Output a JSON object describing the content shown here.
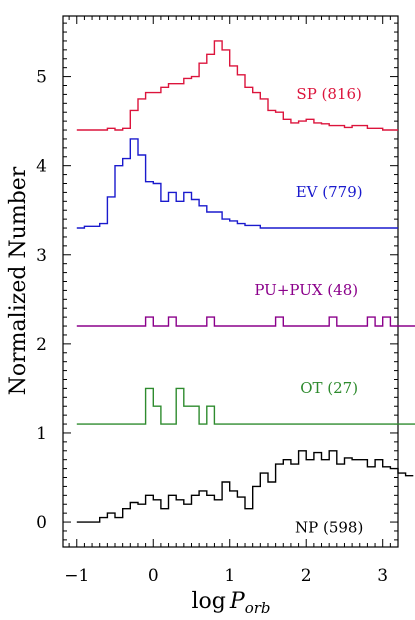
{
  "chart_data": {
    "type": "line",
    "step": true,
    "title": "",
    "xlabel_prefix": "log",
    "xlabel_var": "P",
    "xlabel_sub": "orb",
    "ylabel": "Normalized Number",
    "xlim": [
      -1.18,
      3.2
    ],
    "ylim": [
      -0.28,
      5.68
    ],
    "xticks": [
      -1,
      0,
      1,
      2,
      3
    ],
    "xtick_labels": [
      "−1",
      "0",
      "1",
      "2",
      "3"
    ],
    "yticks": [
      0,
      1,
      2,
      3,
      4,
      5
    ],
    "ytick_labels": [
      "0",
      "1",
      "2",
      "3",
      "4",
      "5"
    ],
    "bin_width": 0.1,
    "series": [
      {
        "name": "SP (816)",
        "color": "#dc143c",
        "edges": [
          -1.0,
          1.9
        ],
        "values": [
          4.4,
          4.4,
          4.4,
          4.4,
          4.42,
          4.4,
          4.42,
          4.62,
          4.75,
          4.82,
          4.82,
          4.88,
          4.92,
          4.92,
          4.98,
          5.0,
          5.15,
          5.25,
          5.4,
          5.3,
          5.12,
          5.02,
          4.88,
          4.82,
          4.75,
          4.62,
          4.6,
          4.52,
          4.48,
          4.5,
          4.52,
          4.48,
          4.47,
          4.45,
          4.45,
          4.43,
          4.45,
          4.45,
          4.42,
          4.42,
          4.4,
          4.4
        ]
      },
      {
        "name": "EV (779)",
        "color": "#1a1acd",
        "edges": [
          -1.0,
          1.9
        ],
        "values": [
          3.3,
          3.32,
          3.32,
          3.35,
          3.65,
          4.0,
          4.08,
          4.3,
          4.12,
          3.82,
          3.8,
          3.6,
          3.7,
          3.6,
          3.7,
          3.62,
          3.55,
          3.48,
          3.48,
          3.4,
          3.38,
          3.35,
          3.33,
          3.33,
          3.3,
          3.3,
          3.3,
          3.3,
          3.3,
          3.3,
          3.3,
          3.3,
          3.3,
          3.3,
          3.3,
          3.3,
          3.3,
          3.3,
          3.3,
          3.3,
          3.3,
          3.3
        ]
      },
      {
        "name": "PU+PUX (48)",
        "color": "#8b008b",
        "edges": [
          -1.0,
          2.5
        ],
        "values": [
          2.2,
          2.2,
          2.2,
          2.2,
          2.2,
          2.2,
          2.2,
          2.2,
          2.2,
          2.3,
          2.2,
          2.2,
          2.3,
          2.2,
          2.2,
          2.2,
          2.2,
          2.3,
          2.2,
          2.2,
          2.2,
          2.2,
          2.2,
          2.2,
          2.2,
          2.2,
          2.3,
          2.2,
          2.2,
          2.2,
          2.2,
          2.2,
          2.2,
          2.3,
          2.2,
          2.2,
          2.2,
          2.2,
          2.3,
          2.2,
          2.3,
          2.2,
          2.2,
          2.2,
          2.2,
          2.2,
          2.2,
          2.2,
          2.2,
          2.2
        ]
      },
      {
        "name": "OT (27)",
        "color": "#2e8b2e",
        "edges": [
          -1.0,
          2.5
        ],
        "values": [
          1.1,
          1.1,
          1.1,
          1.1,
          1.1,
          1.1,
          1.1,
          1.1,
          1.1,
          1.5,
          1.3,
          1.1,
          1.1,
          1.5,
          1.3,
          1.3,
          1.1,
          1.3,
          1.1,
          1.1,
          1.1,
          1.1,
          1.1,
          1.1,
          1.1,
          1.1,
          1.1,
          1.1,
          1.1,
          1.1,
          1.1,
          1.1,
          1.1,
          1.1,
          1.1,
          1.1,
          1.1,
          1.1,
          1.1,
          1.1,
          1.1,
          1.1,
          1.1,
          1.1,
          1.1,
          1.1,
          1.1,
          1.1,
          1.1,
          1.1
        ]
      },
      {
        "name": "NP (598)",
        "color": "#000000",
        "edges": [
          -1.0,
          0.4
        ],
        "values": [
          0.0,
          0.0,
          0.0,
          0.05,
          0.1,
          0.05,
          0.15,
          0.22,
          0.2,
          0.3,
          0.25,
          0.15,
          0.3,
          0.25,
          0.2,
          0.3,
          0.35,
          0.3,
          0.25,
          0.45,
          0.35,
          0.28,
          0.15,
          0.4,
          0.55,
          0.45,
          0.65,
          0.7,
          0.65,
          0.8,
          0.7,
          0.78,
          0.7,
          0.8,
          0.65,
          0.72,
          0.7,
          0.7,
          0.62,
          0.7,
          0.62,
          0.6,
          0.55,
          0.52
        ]
      }
    ]
  }
}
